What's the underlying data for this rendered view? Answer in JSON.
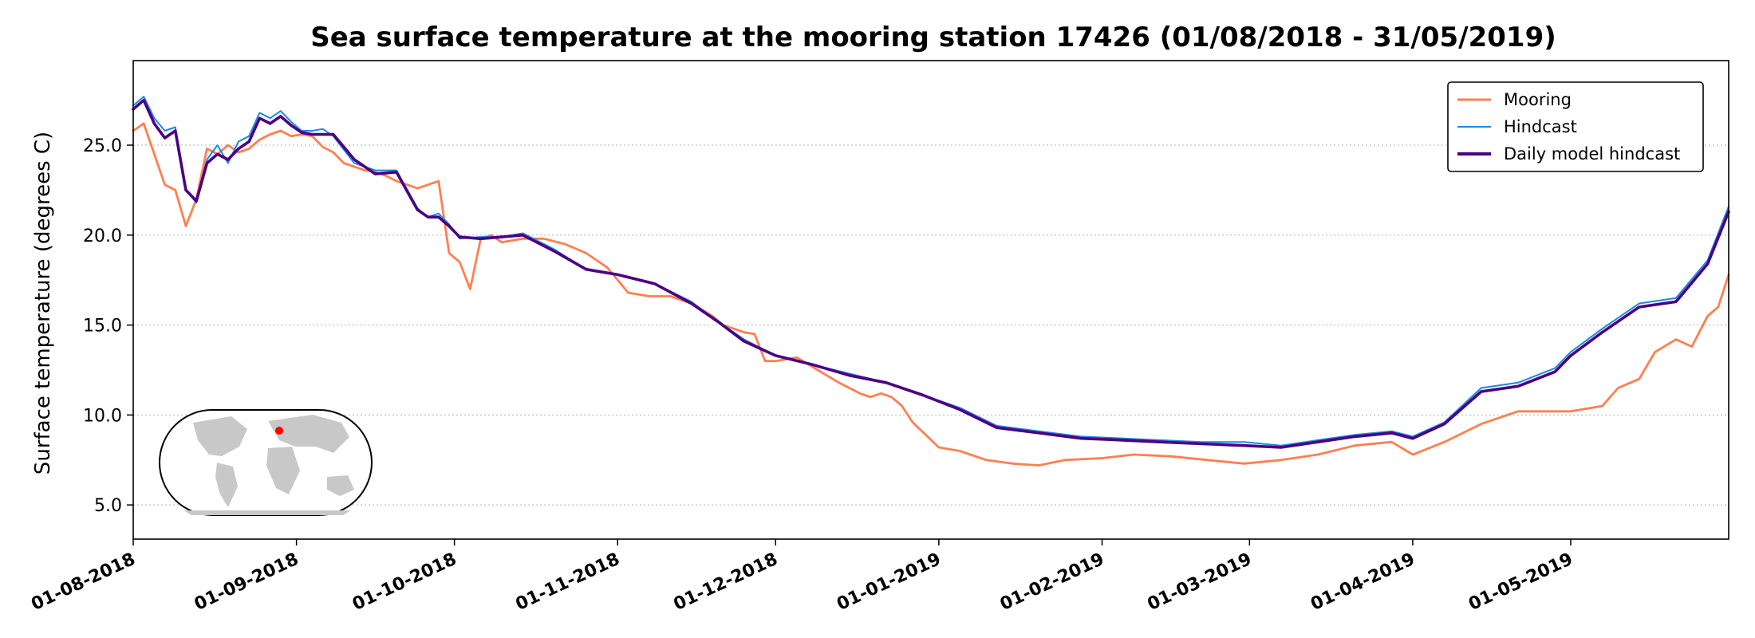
{
  "chart_data": {
    "type": "line",
    "title": "Sea surface temperature at the mooring station 17426 (01/08/2018 - 31/05/2019)",
    "xlabel": "",
    "ylabel": "Surface temperature (degrees C)",
    "xlim": [
      "2018-08-01",
      "2019-05-31"
    ],
    "ylim": [
      3.1,
      29.7
    ],
    "yticks": [
      5.0,
      10.0,
      15.0,
      20.0,
      25.0
    ],
    "ytick_labels": [
      "5.0",
      "10.0",
      "15.0",
      "20.0",
      "25.0"
    ],
    "xticks": [
      "2018-08-01",
      "2018-09-01",
      "2018-10-01",
      "2018-11-01",
      "2018-12-01",
      "2019-01-01",
      "2019-02-01",
      "2019-03-01",
      "2019-04-01",
      "2019-05-01"
    ],
    "xtick_labels": [
      "01-08-2018",
      "01-09-2018",
      "01-10-2018",
      "01-11-2018",
      "01-12-2018",
      "01-01-2019",
      "01-02-2019",
      "01-03-2019",
      "01-04-2019",
      "01-05-2019"
    ],
    "grid": "horizontal dotted",
    "legend_position": "top-right",
    "series": [
      {
        "name": "Mooring",
        "color": "#ff7f50",
        "x": [
          "2018-08-01",
          "2018-08-03",
          "2018-08-05",
          "2018-08-07",
          "2018-08-09",
          "2018-08-11",
          "2018-08-13",
          "2018-08-15",
          "2018-08-17",
          "2018-08-19",
          "2018-08-21",
          "2018-08-23",
          "2018-08-25",
          "2018-08-27",
          "2018-08-29",
          "2018-08-31",
          "2018-09-02",
          "2018-09-04",
          "2018-09-06",
          "2018-09-08",
          "2018-09-10",
          "2018-09-12",
          "2018-09-14",
          "2018-09-16",
          "2018-09-18",
          "2018-09-20",
          "2018-09-22",
          "2018-09-24",
          "2018-09-26",
          "2018-09-28",
          "2018-09-30",
          "2018-10-02",
          "2018-10-04",
          "2018-10-06",
          "2018-10-08",
          "2018-10-10",
          "2018-10-14",
          "2018-10-18",
          "2018-10-22",
          "2018-10-26",
          "2018-10-30",
          "2018-11-03",
          "2018-11-07",
          "2018-11-11",
          "2018-11-15",
          "2018-11-19",
          "2018-11-21",
          "2018-11-23",
          "2018-11-25",
          "2018-11-27",
          "2018-11-29",
          "2018-12-01",
          "2018-12-05",
          "2018-12-09",
          "2018-12-13",
          "2018-12-17",
          "2018-12-19",
          "2018-12-21",
          "2018-12-23",
          "2018-12-25",
          "2018-12-27",
          "2019-01-01",
          "2019-01-05",
          "2019-01-10",
          "2019-01-15",
          "2019-01-20",
          "2019-01-25",
          "2019-02-01",
          "2019-02-07",
          "2019-02-14",
          "2019-02-21",
          "2019-02-28",
          "2019-03-07",
          "2019-03-14",
          "2019-03-21",
          "2019-03-28",
          "2019-04-01",
          "2019-04-07",
          "2019-04-14",
          "2019-04-21",
          "2019-04-28",
          "2019-05-01",
          "2019-05-07",
          "2019-05-10",
          "2019-05-14",
          "2019-05-17",
          "2019-05-21",
          "2019-05-24",
          "2019-05-27",
          "2019-05-29",
          "2019-05-31"
        ],
        "y": [
          25.8,
          26.2,
          24.5,
          22.8,
          22.5,
          20.5,
          22.0,
          24.8,
          24.5,
          25.0,
          24.6,
          24.8,
          25.3,
          25.6,
          25.8,
          25.5,
          25.6,
          25.5,
          24.9,
          24.6,
          24.0,
          23.8,
          23.6,
          23.5,
          23.3,
          23.0,
          22.8,
          22.6,
          22.8,
          23.0,
          19.0,
          18.5,
          17.0,
          19.8,
          20.0,
          19.6,
          19.8,
          19.8,
          19.5,
          19.0,
          18.2,
          16.8,
          16.6,
          16.6,
          16.2,
          15.5,
          15.0,
          14.8,
          14.6,
          14.5,
          13.0,
          13.0,
          13.2,
          12.5,
          11.8,
          11.2,
          11.0,
          11.2,
          11.0,
          10.5,
          9.6,
          8.2,
          8.0,
          7.5,
          7.3,
          7.2,
          7.5,
          7.6,
          7.8,
          7.7,
          7.5,
          7.3,
          7.5,
          7.8,
          8.3,
          8.5,
          7.8,
          8.5,
          9.5,
          10.2,
          10.2,
          10.2,
          10.5,
          11.5,
          12.0,
          13.5,
          14.2,
          13.8,
          15.5,
          16.0,
          17.8
        ]
      },
      {
        "name": "Hindcast",
        "color": "#1e88e5",
        "x": [
          "2018-08-01",
          "2018-08-03",
          "2018-08-05",
          "2018-08-07",
          "2018-08-09",
          "2018-08-11",
          "2018-08-13",
          "2018-08-15",
          "2018-08-17",
          "2018-08-19",
          "2018-08-21",
          "2018-08-23",
          "2018-08-25",
          "2018-08-27",
          "2018-08-29",
          "2018-08-31",
          "2018-09-02",
          "2018-09-04",
          "2018-09-06",
          "2018-09-08",
          "2018-09-12",
          "2018-09-16",
          "2018-09-20",
          "2018-09-24",
          "2018-09-26",
          "2018-09-28",
          "2018-09-30",
          "2018-10-02",
          "2018-10-06",
          "2018-10-10",
          "2018-10-14",
          "2018-10-20",
          "2018-10-26",
          "2018-11-01",
          "2018-11-08",
          "2018-11-15",
          "2018-11-20",
          "2018-11-25",
          "2018-12-01",
          "2018-12-08",
          "2018-12-15",
          "2018-12-22",
          "2018-12-29",
          "2019-01-05",
          "2019-01-12",
          "2019-01-20",
          "2019-01-28",
          "2019-02-05",
          "2019-02-12",
          "2019-02-20",
          "2019-02-28",
          "2019-03-07",
          "2019-03-14",
          "2019-03-21",
          "2019-03-28",
          "2019-04-01",
          "2019-04-07",
          "2019-04-14",
          "2019-04-21",
          "2019-04-28",
          "2019-05-01",
          "2019-05-07",
          "2019-05-14",
          "2019-05-21",
          "2019-05-27",
          "2019-05-31"
        ],
        "y": [
          27.2,
          27.7,
          26.5,
          25.8,
          26.0,
          22.5,
          21.8,
          24.2,
          25.0,
          24.0,
          25.2,
          25.5,
          26.8,
          26.5,
          26.9,
          26.3,
          25.8,
          25.8,
          25.9,
          25.5,
          24.0,
          23.6,
          23.6,
          21.5,
          21.0,
          21.2,
          20.6,
          19.8,
          19.9,
          19.9,
          20.1,
          19.2,
          18.1,
          17.8,
          17.3,
          16.3,
          15.2,
          14.2,
          13.3,
          12.8,
          12.3,
          11.8,
          11.1,
          10.4,
          9.4,
          9.1,
          8.8,
          8.7,
          8.6,
          8.5,
          8.5,
          8.3,
          8.6,
          8.9,
          9.1,
          8.8,
          9.6,
          11.5,
          11.8,
          12.6,
          13.5,
          14.8,
          16.2,
          16.5,
          18.6,
          21.6
        ]
      },
      {
        "name": "Daily model hindcast",
        "color": "#4b0082",
        "x": [
          "2018-08-01",
          "2018-08-03",
          "2018-08-05",
          "2018-08-07",
          "2018-08-09",
          "2018-08-11",
          "2018-08-13",
          "2018-08-15",
          "2018-08-17",
          "2018-08-19",
          "2018-08-21",
          "2018-08-23",
          "2018-08-25",
          "2018-08-27",
          "2018-08-29",
          "2018-08-31",
          "2018-09-02",
          "2018-09-04",
          "2018-09-08",
          "2018-09-12",
          "2018-09-16",
          "2018-09-20",
          "2018-09-24",
          "2018-09-26",
          "2018-09-28",
          "2018-09-30",
          "2018-10-02",
          "2018-10-06",
          "2018-10-10",
          "2018-10-14",
          "2018-10-20",
          "2018-10-26",
          "2018-11-01",
          "2018-11-08",
          "2018-11-15",
          "2018-11-20",
          "2018-11-25",
          "2018-12-01",
          "2018-12-08",
          "2018-12-15",
          "2018-12-22",
          "2018-12-29",
          "2019-01-05",
          "2019-01-12",
          "2019-01-20",
          "2019-01-28",
          "2019-02-05",
          "2019-02-12",
          "2019-02-20",
          "2019-02-28",
          "2019-03-07",
          "2019-03-14",
          "2019-03-21",
          "2019-03-28",
          "2019-04-01",
          "2019-04-07",
          "2019-04-14",
          "2019-04-21",
          "2019-04-28",
          "2019-05-01",
          "2019-05-07",
          "2019-05-14",
          "2019-05-21",
          "2019-05-27",
          "2019-05-31"
        ],
        "y": [
          27.0,
          27.5,
          26.2,
          25.4,
          25.8,
          22.5,
          21.9,
          24.0,
          24.5,
          24.2,
          24.8,
          25.2,
          26.5,
          26.2,
          26.6,
          26.1,
          25.7,
          25.6,
          25.6,
          24.2,
          23.4,
          23.5,
          21.4,
          21.0,
          21.0,
          20.5,
          19.9,
          19.8,
          19.9,
          20.0,
          19.1,
          18.1,
          17.8,
          17.3,
          16.2,
          15.2,
          14.1,
          13.3,
          12.8,
          12.2,
          11.8,
          11.1,
          10.3,
          9.3,
          9.0,
          8.7,
          8.6,
          8.5,
          8.4,
          8.3,
          8.2,
          8.5,
          8.8,
          9.0,
          8.7,
          9.5,
          11.3,
          11.6,
          12.4,
          13.3,
          14.6,
          16.0,
          16.3,
          18.4,
          21.3
        ]
      }
    ]
  },
  "inset_map": {
    "icon": "world-map-icon",
    "marker_color": "#ff0000"
  }
}
